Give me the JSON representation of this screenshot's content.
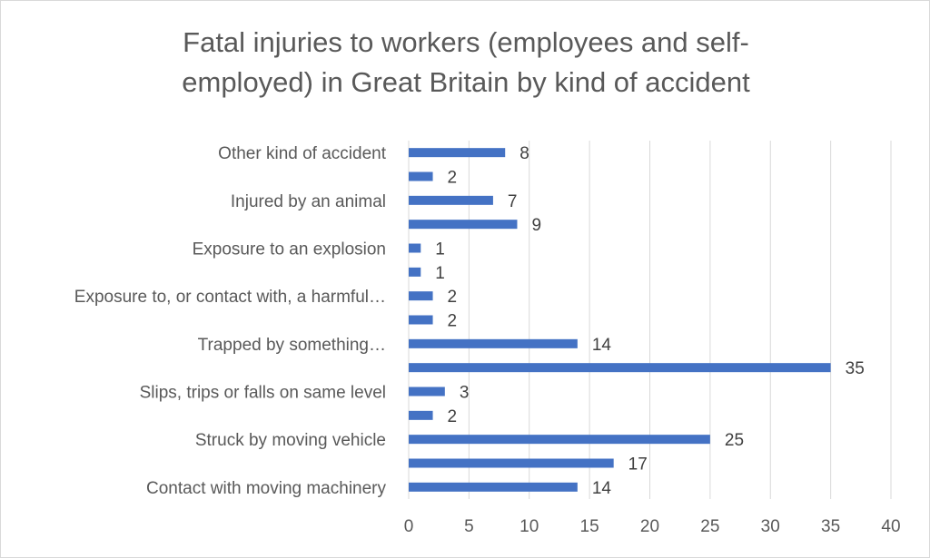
{
  "chart_data": {
    "type": "bar",
    "orientation": "horizontal",
    "title": "Fatal injuries to workers (employees and self-employed) in Great Britain by kind of accident",
    "title_lines": [
      "Fatal injuries to workers (employees and self-",
      "employed) in Great Britain by kind of accident"
    ],
    "categories": [
      "Contact with moving machinery",
      "",
      "Struck by moving vehicle",
      "",
      "Slips, trips or falls on same level",
      "",
      "Trapped by something…",
      "",
      "Exposure to, or contact with, a harmful…",
      "",
      "Exposure to an explosion",
      "",
      "Injured by an animal",
      "",
      "Other kind of accident"
    ],
    "values": [
      14,
      17,
      25,
      2,
      3,
      35,
      14,
      2,
      2,
      1,
      1,
      9,
      7,
      2,
      8
    ],
    "xlim": [
      0,
      40
    ],
    "xticks": [
      0,
      5,
      10,
      15,
      20,
      25,
      30,
      35,
      40
    ],
    "xlabel": "",
    "ylabel": "",
    "grid": "vertical",
    "legend": "none",
    "data_labels": true,
    "bar_color": "#4472C4"
  }
}
